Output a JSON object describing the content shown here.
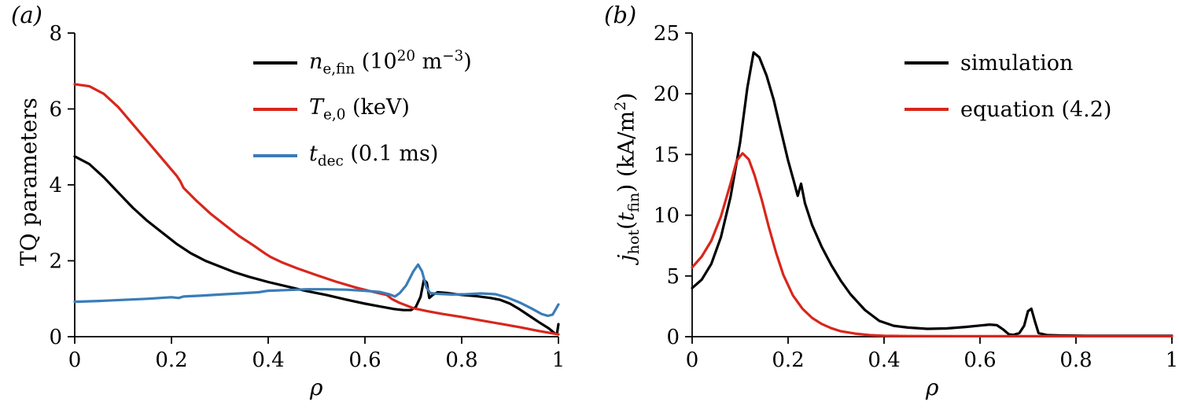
{
  "figure": {
    "background": "#ffffff",
    "axis_color": "#000000"
  },
  "chart_data": [
    {
      "type": "line",
      "panel_label": "(a)",
      "title": "",
      "xlabel_html": "&#961;",
      "ylabel_html": "TQ parameters",
      "xlim": [
        0,
        1
      ],
      "ylim": [
        0,
        8
      ],
      "xticks": [
        0,
        0.2,
        0.4,
        0.6,
        0.8,
        1
      ],
      "xtick_labels": [
        "0",
        "0.2",
        "0.4",
        "0.6",
        "0.8",
        "1"
      ],
      "yticks": [
        0,
        2,
        4,
        6,
        8
      ],
      "ytick_labels": [
        "0",
        "2",
        "4",
        "6",
        "8"
      ],
      "grid": false,
      "legend_position": "inside-top-right",
      "series": [
        {
          "name": "n_e,fin (10^20 m^-3)",
          "label_html": "<i>n</i><sub>e,fin</sub> (10<sup>20</sup> m<sup>&#8722;3</sup>)",
          "color": "#000000",
          "x": [
            0,
            0.03,
            0.06,
            0.09,
            0.12,
            0.15,
            0.18,
            0.21,
            0.24,
            0.27,
            0.3,
            0.33,
            0.36,
            0.4,
            0.44,
            0.48,
            0.52,
            0.56,
            0.6,
            0.63,
            0.66,
            0.68,
            0.695,
            0.705,
            0.715,
            0.722,
            0.728,
            0.733,
            0.74,
            0.75,
            0.77,
            0.8,
            0.83,
            0.86,
            0.88,
            0.9,
            0.92,
            0.94,
            0.96,
            0.98,
            0.993,
            0.997,
            1.0
          ],
          "y": [
            4.75,
            4.55,
            4.2,
            3.8,
            3.4,
            3.05,
            2.75,
            2.45,
            2.2,
            2.0,
            1.85,
            1.7,
            1.58,
            1.44,
            1.32,
            1.2,
            1.1,
            0.98,
            0.87,
            0.8,
            0.73,
            0.7,
            0.7,
            0.78,
            1.05,
            1.5,
            1.42,
            1.02,
            1.1,
            1.17,
            1.15,
            1.1,
            1.07,
            1.02,
            0.97,
            0.87,
            0.72,
            0.55,
            0.38,
            0.22,
            0.08,
            0.08,
            0.33
          ]
        },
        {
          "name": "T_e,0 (keV)",
          "label_html": "<i>T</i><sub>e,0</sub> (keV)",
          "color": "#d8261c",
          "x": [
            0,
            0.03,
            0.06,
            0.09,
            0.12,
            0.15,
            0.18,
            0.21,
            0.218,
            0.225,
            0.25,
            0.28,
            0.31,
            0.34,
            0.37,
            0.395,
            0.405,
            0.43,
            0.46,
            0.5,
            0.54,
            0.58,
            0.62,
            0.645,
            0.655,
            0.67,
            0.7,
            0.73,
            0.76,
            0.8,
            0.84,
            0.88,
            0.92,
            0.96,
            1.0
          ],
          "y": [
            6.65,
            6.6,
            6.4,
            6.05,
            5.6,
            5.15,
            4.7,
            4.25,
            4.1,
            3.92,
            3.6,
            3.25,
            2.95,
            2.65,
            2.4,
            2.18,
            2.1,
            1.95,
            1.8,
            1.62,
            1.45,
            1.3,
            1.17,
            1.1,
            1.0,
            0.9,
            0.75,
            0.67,
            0.6,
            0.52,
            0.43,
            0.34,
            0.25,
            0.15,
            0.06
          ]
        },
        {
          "name": "t_dec (0.1 ms)",
          "label_html": "<i>t</i><sub>dec</sub> (0.1 ms)",
          "color": "#3a7cb8",
          "x": [
            0,
            0.05,
            0.1,
            0.15,
            0.2,
            0.215,
            0.225,
            0.26,
            0.3,
            0.34,
            0.38,
            0.4,
            0.44,
            0.48,
            0.52,
            0.56,
            0.6,
            0.63,
            0.65,
            0.662,
            0.672,
            0.685,
            0.7,
            0.71,
            0.718,
            0.727,
            0.735,
            0.75,
            0.78,
            0.81,
            0.84,
            0.87,
            0.895,
            0.92,
            0.945,
            0.965,
            0.978,
            0.988,
            1.0
          ],
          "y": [
            0.92,
            0.94,
            0.97,
            1.0,
            1.04,
            1.02,
            1.06,
            1.08,
            1.11,
            1.14,
            1.17,
            1.21,
            1.23,
            1.25,
            1.25,
            1.24,
            1.21,
            1.18,
            1.12,
            1.06,
            1.15,
            1.35,
            1.72,
            1.9,
            1.72,
            1.3,
            1.15,
            1.13,
            1.11,
            1.12,
            1.14,
            1.12,
            1.03,
            0.9,
            0.74,
            0.6,
            0.55,
            0.58,
            0.85
          ]
        }
      ]
    },
    {
      "type": "line",
      "panel_label": "(b)",
      "title": "",
      "xlabel_html": "&#961;",
      "ylabel_html": "<i>j</i><sub>hot</sub>(<i>t</i><sub>fin</sub>) (kA/m<sup>2</sup>)",
      "xlim": [
        0,
        1
      ],
      "ylim": [
        0,
        25
      ],
      "xticks": [
        0,
        0.2,
        0.4,
        0.6,
        0.8,
        1
      ],
      "xtick_labels": [
        "0",
        "0.2",
        "0.4",
        "0.6",
        "0.8",
        "1"
      ],
      "yticks": [
        0,
        5,
        10,
        15,
        20,
        25
      ],
      "ytick_labels": [
        "0",
        "5",
        "10",
        "15",
        "20",
        "25"
      ],
      "grid": false,
      "legend_position": "inside-top-right",
      "series": [
        {
          "name": "simulation",
          "label_html": "simulation",
          "color": "#000000",
          "x": [
            0,
            0.02,
            0.04,
            0.06,
            0.08,
            0.1,
            0.115,
            0.128,
            0.14,
            0.155,
            0.17,
            0.185,
            0.2,
            0.212,
            0.22,
            0.227,
            0.235,
            0.25,
            0.27,
            0.29,
            0.31,
            0.33,
            0.36,
            0.39,
            0.42,
            0.45,
            0.49,
            0.53,
            0.57,
            0.6,
            0.62,
            0.635,
            0.648,
            0.66,
            0.67,
            0.682,
            0.692,
            0.7,
            0.707,
            0.715,
            0.722,
            0.74,
            0.77,
            0.82,
            0.9,
            1.0
          ],
          "y": [
            4.0,
            4.7,
            6.0,
            8.2,
            11.5,
            16.0,
            20.5,
            23.4,
            23.0,
            21.5,
            19.5,
            17.0,
            14.5,
            12.8,
            11.6,
            12.6,
            11.0,
            9.2,
            7.4,
            5.9,
            4.6,
            3.5,
            2.2,
            1.3,
            0.9,
            0.75,
            0.65,
            0.68,
            0.8,
            0.92,
            1.0,
            0.95,
            0.6,
            0.2,
            0.15,
            0.3,
            0.9,
            2.1,
            2.3,
            1.2,
            0.3,
            0.13,
            0.1,
            0.08,
            0.08,
            0.08
          ]
        },
        {
          "name": "equation (4.2)",
          "label_html": "equation (4.2)",
          "color": "#d8261c",
          "x": [
            0,
            0.02,
            0.04,
            0.06,
            0.08,
            0.093,
            0.105,
            0.118,
            0.13,
            0.145,
            0.16,
            0.175,
            0.19,
            0.21,
            0.23,
            0.25,
            0.27,
            0.29,
            0.31,
            0.34,
            0.37,
            0.4,
            0.45,
            0.55,
            0.7,
            0.85,
            1.0
          ],
          "y": [
            5.7,
            6.6,
            7.9,
            9.9,
            12.6,
            14.5,
            15.1,
            14.6,
            13.3,
            11.3,
            9.0,
            6.9,
            5.1,
            3.4,
            2.3,
            1.55,
            1.05,
            0.7,
            0.45,
            0.25,
            0.13,
            0.08,
            0.05,
            0.04,
            0.04,
            0.04,
            0.04
          ]
        }
      ]
    }
  ]
}
